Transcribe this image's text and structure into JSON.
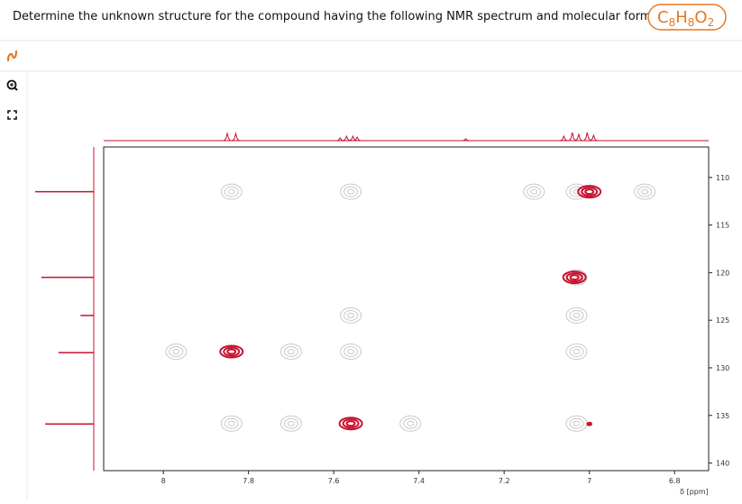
{
  "header": {
    "question": "Determine the unknown structure for the compound having the following NMR spectrum and molecular formula",
    "formula": [
      {
        "symbol": "C",
        "count": "8"
      },
      {
        "symbol": "H",
        "count": "8"
      },
      {
        "symbol": "O",
        "count": "2"
      }
    ]
  },
  "chart_data": {
    "type": "hsqc",
    "x_label": "δ [ppm]",
    "xlim": [
      8.14,
      6.72
    ],
    "xticks": [
      8,
      7.8,
      7.6,
      7.4,
      7.2,
      7,
      6.8
    ],
    "ylim": [
      106.8,
      140.8
    ],
    "yticks": [
      110,
      115,
      120,
      125,
      130,
      135,
      140
    ],
    "series": [
      {
        "color": "#c8102e",
        "x": [
          7.84,
          7.56,
          7.035,
          7.0,
          7.0
        ],
        "values": [
          128.3,
          135.85,
          120.5,
          111.5,
          135.9
        ]
      },
      {
        "color": "#c8c8c8",
        "x": [
          7.84,
          7.56,
          7.13,
          7.03,
          6.87,
          7.56,
          7.03,
          7.97,
          7.7,
          7.56,
          7.03,
          7.84,
          7.7,
          7.42,
          7.03,
          7.03
        ],
        "values": [
          111.5,
          111.5,
          111.5,
          111.5,
          111.5,
          124.5,
          124.5,
          128.3,
          128.3,
          128.3,
          128.3,
          135.85,
          135.85,
          135.85,
          135.85,
          120.5
        ]
      }
    ],
    "x_projection": {
      "positions": [
        7.85,
        7.83,
        7.585,
        7.57,
        7.555,
        7.545,
        7.29,
        7.06,
        7.04,
        7.025,
        7.005,
        6.99
      ],
      "intensities": [
        0.67,
        0.67,
        0.25,
        0.42,
        0.42,
        0.33,
        0.17,
        0.42,
        0.75,
        0.58,
        0.75,
        0.5
      ]
    },
    "y_projection": {
      "positions": [
        111.5,
        120.5,
        124.5,
        128.4,
        135.9
      ],
      "intensities": [
        0.93,
        0.83,
        0.21,
        0.56,
        0.77
      ]
    }
  }
}
